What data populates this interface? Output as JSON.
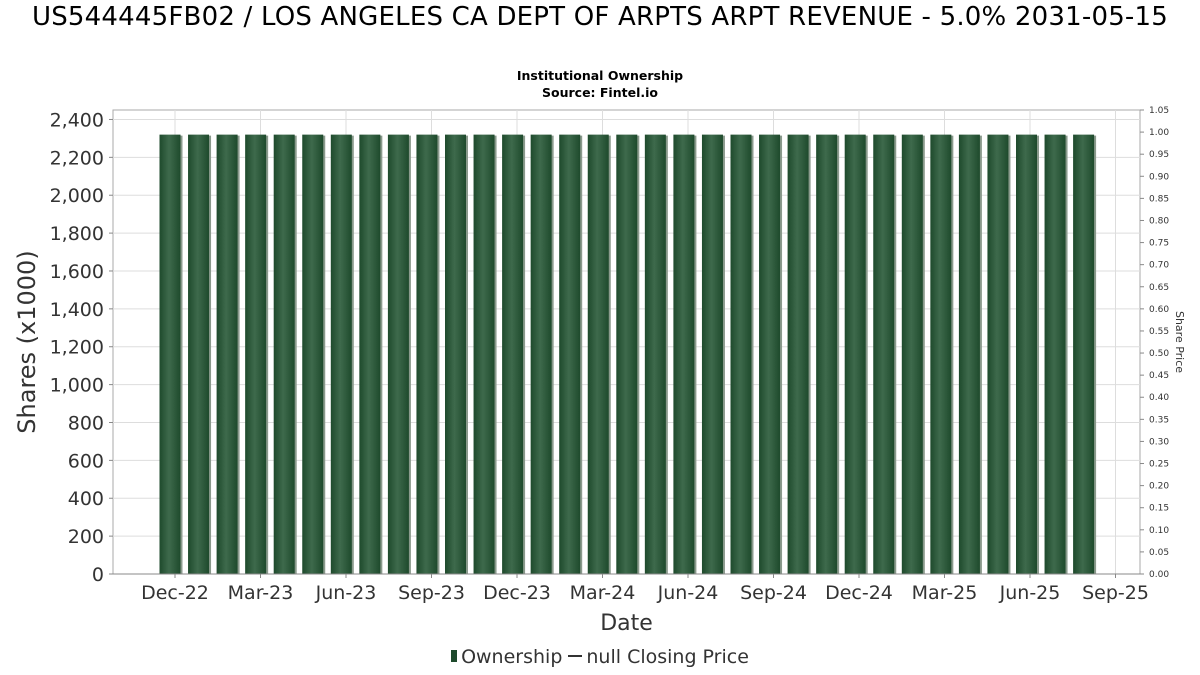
{
  "header": {
    "title": "US544445FB02 / LOS ANGELES CA DEPT OF ARPTS ARPT REVENUE - 5.0% 2031-05-15",
    "subtitle1": "Institutional Ownership",
    "subtitle2": "Source: Fintel.io"
  },
  "legend": {
    "ownership": "Ownership",
    "price": "null Closing Price"
  },
  "colors": {
    "bar": "#1e4a2c",
    "bar_highlight": "#3e6a4c",
    "bar_shadow": "#8a9a8c",
    "grid": "#dddddd"
  },
  "chart_data": {
    "type": "bar",
    "xlabel": "Date",
    "ylabel": "Shares (x1000)",
    "y2label": "Share Price",
    "ylim": [
      0,
      2450
    ],
    "y2lim": [
      0,
      1.05
    ],
    "yticks": [
      "0",
      "200",
      "400",
      "600",
      "800",
      "1,000",
      "1,200",
      "1,400",
      "1,600",
      "1,800",
      "2,000",
      "2,200",
      "2,400"
    ],
    "y2ticks": [
      "0.00",
      "0.05",
      "0.10",
      "0.15",
      "0.20",
      "0.25",
      "0.30",
      "0.35",
      "0.40",
      "0.45",
      "0.50",
      "0.55",
      "0.60",
      "0.65",
      "0.70",
      "0.75",
      "0.80",
      "0.85",
      "0.90",
      "0.95",
      "1.00",
      "1.05"
    ],
    "xticks": [
      "Dec-22",
      "Mar-23",
      "Jun-23",
      "Sep-23",
      "Dec-23",
      "Mar-24",
      "Jun-24",
      "Sep-24",
      "Dec-24",
      "Mar-25",
      "Jun-25",
      "Sep-25"
    ],
    "series": [
      {
        "name": "Ownership",
        "values": [
          2320,
          2320,
          2320,
          2320,
          2320,
          2320,
          2320,
          2320,
          2320,
          2320,
          2320,
          2320,
          2320,
          2320,
          2320,
          2320,
          2320,
          2320,
          2320,
          2320,
          2320,
          2320,
          2320,
          2320,
          2320,
          2320,
          2320,
          2320,
          2320,
          2320,
          2320,
          2320,
          2320
        ]
      }
    ],
    "grid": true
  }
}
